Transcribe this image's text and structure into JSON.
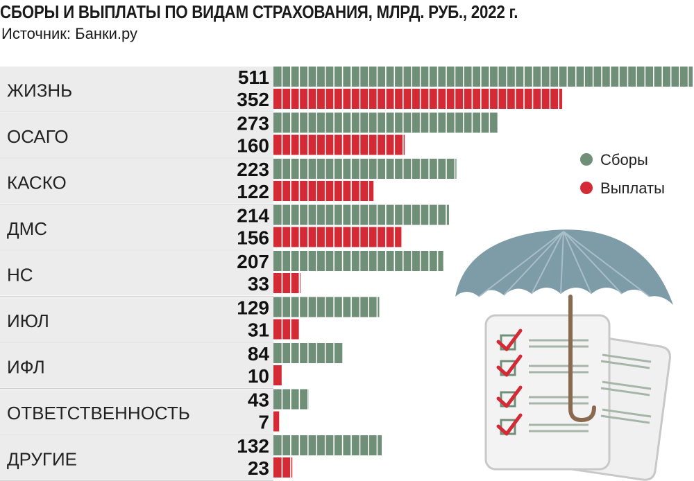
{
  "header": {
    "title": "СБОРЫ И ВЫПЛАТЫ ПО ВИДАМ СТРАХОВАНИЯ, МЛРД. РУБ., 2022 г.",
    "source": "Источник: Банки.ру"
  },
  "colors": {
    "collections": "#6f8f78",
    "payouts": "#d42a36",
    "band": "#ececec",
    "umbrella": "#7e9ba8",
    "handle": "#8a6a4f"
  },
  "chart_data": {
    "type": "bar",
    "orientation": "horizontal",
    "title": "СБОРЫ И ВЫПЛАТЫ ПО ВИДАМ СТРАХОВАНИЯ, МЛРД. РУБ., 2022 г.",
    "categories": [
      "ЖИЗНЬ",
      "ОСАГО",
      "КАСКО",
      "ДМС",
      "НС",
      "ИЮЛ",
      "ИФЛ",
      "ОТВЕТСТВЕННОСТЬ",
      "ДРУГИЕ"
    ],
    "series": [
      {
        "name": "Сборы",
        "values": [
          511,
          273,
          223,
          214,
          207,
          129,
          84,
          43,
          132
        ]
      },
      {
        "name": "Выплаты",
        "values": [
          352,
          160,
          122,
          156,
          33,
          31,
          10,
          7,
          23
        ]
      }
    ],
    "xlim": [
      0,
      511
    ],
    "legend_position": "right",
    "grid": false
  }
}
